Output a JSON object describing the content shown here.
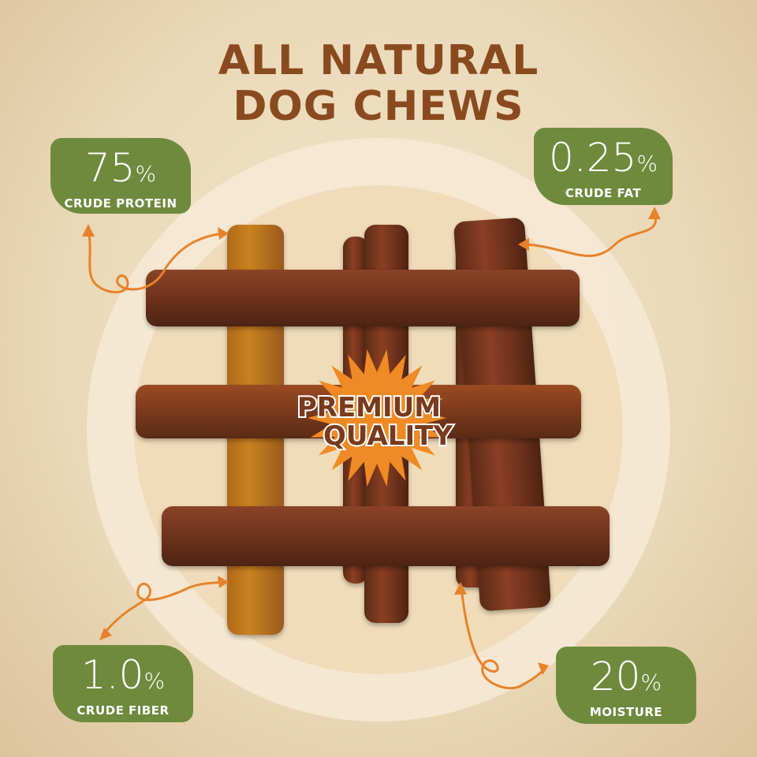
{
  "title": {
    "line1": "ALL NATURAL",
    "line2": "DOG CHEWS"
  },
  "seal": {
    "line1": "PREMIUM",
    "line2": "QUALITY"
  },
  "stats": [
    {
      "value": "75",
      "unit": "%",
      "label": "CRUDE PROTEIN"
    },
    {
      "value": "0.25",
      "unit": "%",
      "label": "CRUDE FAT"
    },
    {
      "value": "1.0",
      "unit": "%",
      "label": "CRUDE FIBER"
    },
    {
      "value": "20",
      "unit": "%",
      "label": "MOISTURE"
    }
  ],
  "colors": {
    "badge": "#6e8b3d",
    "title": "#8a4a1f",
    "arrow": "#e8822a",
    "seal": "#f08a24"
  }
}
